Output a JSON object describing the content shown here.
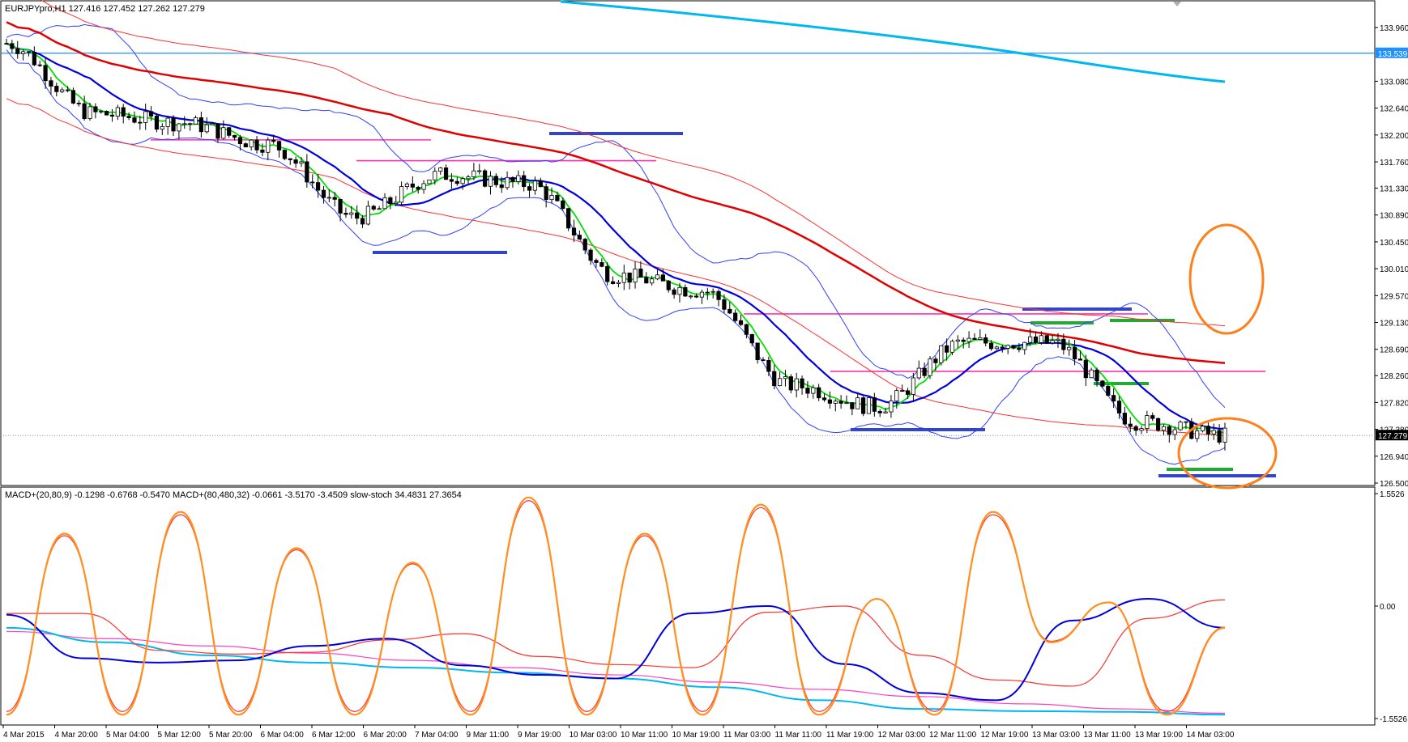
{
  "main_panel": {
    "symbol_info": "EURJPYpro,H1  127.416 127.452 127.262 127.279",
    "price_ticks": [
      "133.960",
      "133.080",
      "132.640",
      "132.200",
      "131.760",
      "131.330",
      "130.890",
      "130.450",
      "130.010",
      "129.570",
      "129.130",
      "128.690",
      "128.260",
      "127.820",
      "127.380",
      "126.940",
      "126.500"
    ],
    "badges": [
      {
        "label": "133.539",
        "price": 133.539,
        "bg": "#1e90ff",
        "fg": "#ffffff"
      },
      {
        "label": "127.279",
        "price": 127.279,
        "bg": "#000000",
        "fg": "#ffffff"
      }
    ]
  },
  "sub_panel": {
    "indicator_info": "MACD+(20,80,9) -0.1298 -0.6768 -0.5470  MACD+(80,480,32) -0.0661 -3.5170 -3.4509  slow-stoch 34.4831 27.3654",
    "scale_ticks": [
      {
        "label": "1.5526",
        "value": 1.5526
      },
      {
        "label": "0.00",
        "value": 0
      },
      {
        "label": "-1.5526",
        "value": -1.5526
      }
    ]
  },
  "time_labels": [
    "4 Mar 2015",
    "4 Mar 20:00",
    "5 Mar 04:00",
    "5 Mar 12:00",
    "5 Mar 20:00",
    "6 Mar 04:00",
    "6 Mar 12:00",
    "6 Mar 20:00",
    "7 Mar 04:00",
    "9 Mar 11:00",
    "9 Mar 19:00",
    "10 Mar 03:00",
    "10 Mar 11:00",
    "10 Mar 19:00",
    "11 Mar 03:00",
    "11 Mar 11:00",
    "11 Mar 19:00",
    "12 Mar 03:00",
    "12 Mar 11:00",
    "12 Mar 19:00",
    "13 Mar 03:00",
    "13 Mar 11:00",
    "13 Mar 19:00",
    "14 Mar 03:00"
  ],
  "colors": {
    "ma_fast": "#00e000",
    "ma_mid": "#0000dd",
    "ma_slow": "#e00000",
    "ma_long": "#00b8f0",
    "envelope": "#ff3030",
    "bollinger": "#3040ff",
    "support_resistance": "#ff30b0",
    "zone_blue": "#3344cc",
    "zone_green": "#22aa33",
    "highlight": "#ff7f1a",
    "macd_main": "#0000dd",
    "macd_signal": "#ff3030",
    "macd_long": "#00b8f0",
    "macd_long_signal": "#ff40c0",
    "stoch": "#ff9020"
  },
  "chart_data": [
    {
      "type": "candlestick",
      "title": "EURJPYpro,H1",
      "series_note": "price candles with moving averages and bands",
      "ylim": [
        126.3,
        134.3
      ],
      "last_ohlc": {
        "open": 127.416,
        "high": 127.452,
        "low": 127.262,
        "close": 127.279
      },
      "key_closes": [
        {
          "x": "4 Mar 2015",
          "close": 133.7
        },
        {
          "x": "5 Mar 04:00",
          "close": 132.55
        },
        {
          "x": "5 Mar 20:00",
          "close": 132.4
        },
        {
          "x": "6 Mar 12:00",
          "close": 132.05
        },
        {
          "x": "7 Mar 04:00",
          "close": 130.85
        },
        {
          "x": "9 Mar 19:00",
          "close": 131.55
        },
        {
          "x": "10 Mar 11:00",
          "close": 131.4
        },
        {
          "x": "10 Mar 19:00",
          "close": 129.9
        },
        {
          "x": "11 Mar 03:00",
          "close": 129.65
        },
        {
          "x": "11 Mar 19:00",
          "close": 128.1
        },
        {
          "x": "12 Mar 03:00",
          "close": 127.75
        },
        {
          "x": "12 Mar 19:00",
          "close": 128.8
        },
        {
          "x": "13 Mar 11:00",
          "close": 128.8
        },
        {
          "x": "13 Mar 19:00",
          "close": 127.5
        },
        {
          "x": "14 Mar 03:00",
          "close": 127.279
        }
      ],
      "horizontal_lines": [
        {
          "price": 133.539,
          "color": "#1e90ff"
        },
        {
          "price": 132.12,
          "color": "#ff30b0"
        },
        {
          "price": 131.78,
          "color": "#ff30b0"
        },
        {
          "price": 129.27,
          "color": "#ff30b0"
        },
        {
          "price": 128.33,
          "color": "#ff30b0"
        }
      ]
    },
    {
      "type": "line",
      "title": "MACD+ / slow-stoch",
      "ylim": [
        -1.6,
        1.6
      ],
      "series": [
        {
          "name": "MACD+(20,80,9)",
          "values": [
            -0.12,
            -0.72,
            -0.78,
            -0.75,
            -0.55,
            -0.45,
            -0.82,
            -0.95,
            -1.0,
            -0.1,
            0.0,
            -0.8,
            -1.2,
            -1.3,
            -0.2,
            0.1,
            -0.3
          ]
        },
        {
          "name": "slow-stoch",
          "values": [
            -1.5,
            1.0,
            -1.5,
            1.3,
            -1.5,
            0.8,
            -1.5,
            0.6,
            -1.5,
            1.5,
            -1.5,
            1.0,
            -1.5,
            1.4,
            -1.5,
            0.1,
            -1.5,
            1.3,
            -0.5,
            0.05,
            -1.5,
            -0.3
          ]
        }
      ]
    }
  ]
}
